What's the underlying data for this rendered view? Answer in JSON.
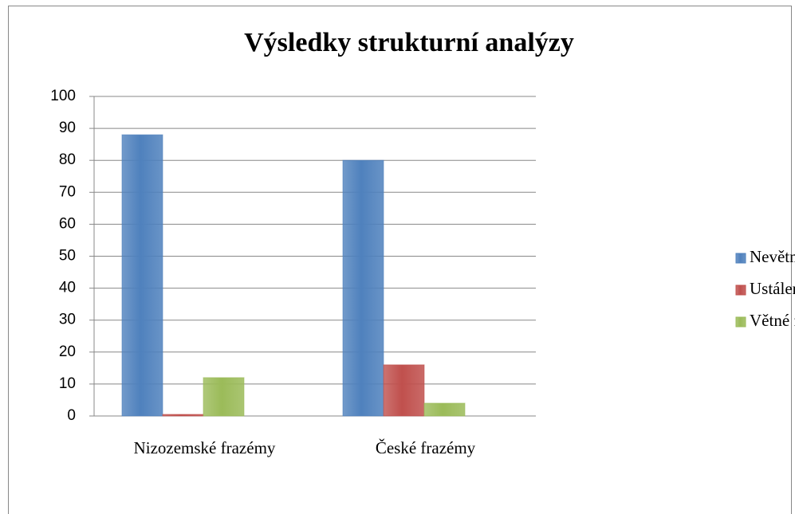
{
  "chart_data": {
    "type": "bar",
    "title": "Výsledky strukturní analýzy",
    "categories": [
      "Nizozemské frazémy",
      "České frazémy"
    ],
    "series": [
      {
        "name": "Nevětné frazémy",
        "color": "#4f81bd",
        "values": [
          88,
          80
        ]
      },
      {
        "name": "Ustálená přirovnání",
        "color": "#c0504d",
        "values": [
          0.5,
          16
        ]
      },
      {
        "name": "Větné frazémy",
        "color": "#9bbb59",
        "values": [
          12,
          4
        ]
      }
    ],
    "ylim": [
      0,
      100
    ],
    "yticks": [
      0,
      10,
      20,
      30,
      40,
      50,
      60,
      70,
      80,
      90,
      100
    ],
    "grid": true,
    "legend": "right"
  }
}
